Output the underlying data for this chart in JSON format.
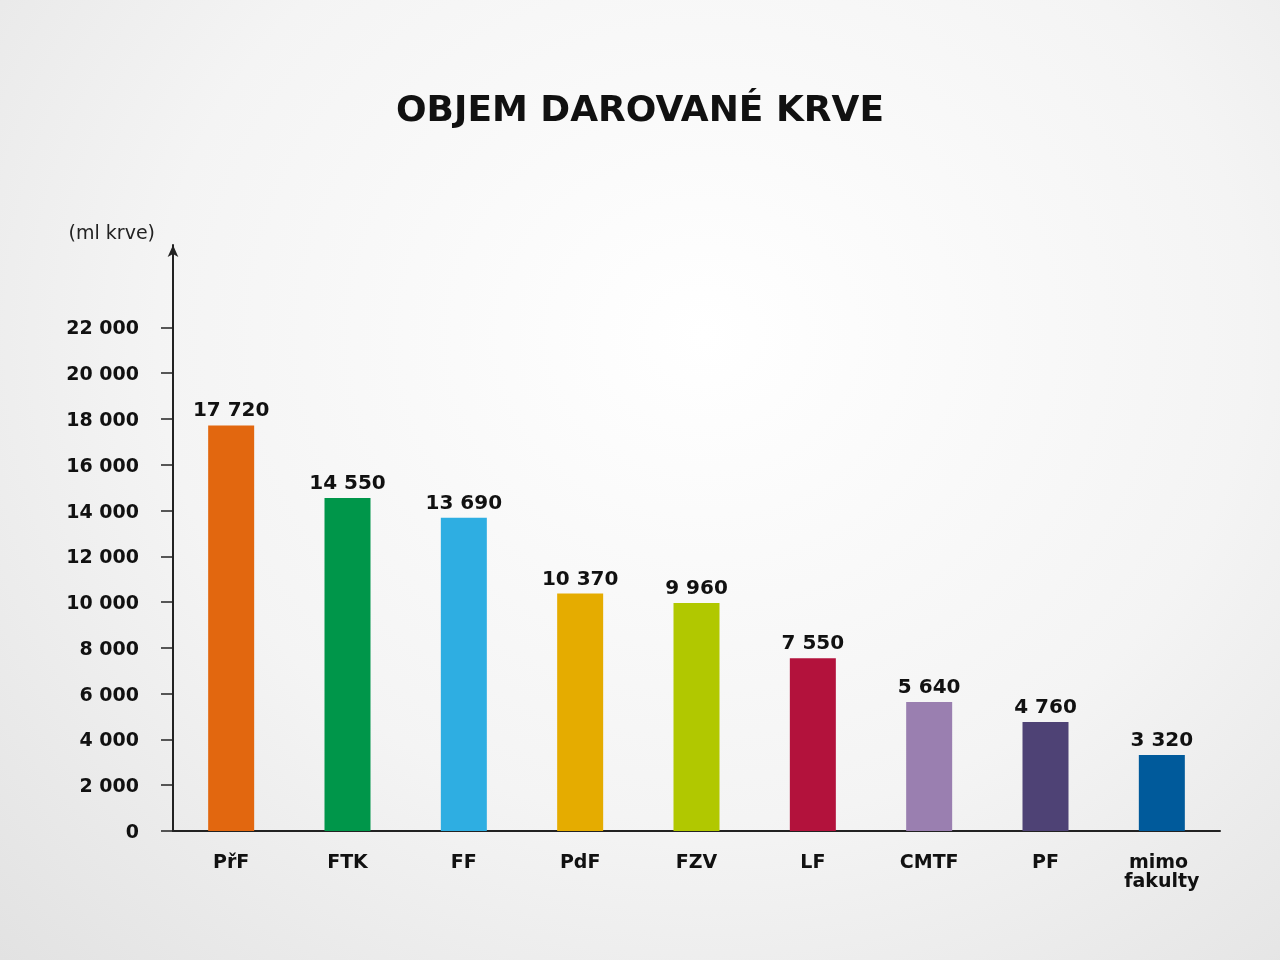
{
  "chart_data": {
    "type": "bar",
    "title": "OBJEM DAROVANÉ KRVE",
    "ylabel": "(ml krve)",
    "categories": [
      "PřF",
      "FTK",
      "FF",
      "PdF",
      "FZV",
      "LF",
      "CMTF",
      "PF",
      "mimo fakulty"
    ],
    "values": [
      17720,
      14550,
      13690,
      10370,
      9960,
      7550,
      5640,
      4760,
      3320
    ],
    "value_labels": [
      "17 720",
      "14 550",
      "13 690",
      "10 370",
      "9 960",
      "7 550",
      "5 640",
      "4 760",
      "3 320"
    ],
    "colors": [
      "#e2670f",
      "#00964a",
      "#2eaee2",
      "#e5ac00",
      "#b1c800",
      "#b3123c",
      "#9a7fb0",
      "#4e4275",
      "#005a9b"
    ],
    "ylim": [
      0,
      25600
    ],
    "yticks": [
      {
        "value": 0,
        "label": "0"
      },
      {
        "value": 2000,
        "label": "2 000"
      },
      {
        "value": 4000,
        "label": "4 000"
      },
      {
        "value": 6000,
        "label": "6 000"
      },
      {
        "value": 8000,
        "label": "8 000"
      },
      {
        "value": 10000,
        "label": "10 000"
      },
      {
        "value": 12000,
        "label": "12 000"
      },
      {
        "value": 14000,
        "label": "14 000"
      },
      {
        "value": 16000,
        "label": "16 000"
      },
      {
        "value": 18000,
        "label": "18 000"
      },
      {
        "value": 20000,
        "label": "20 000"
      },
      {
        "value": 22000,
        "label": "22 000"
      }
    ],
    "grid": false
  }
}
